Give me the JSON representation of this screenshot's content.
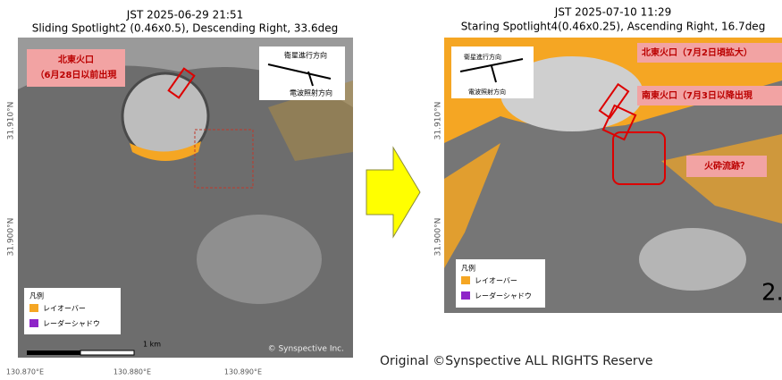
{
  "left": {
    "time": "JST 2025-06-29 21:51",
    "caption": "Sliding Spotlight2 (0.46x0.5), Descending Right, 33.6deg",
    "crater_label": [
      "北東火口",
      "（6月28日以前出現"
    ],
    "direction": {
      "satellite": "衛星進行方向",
      "radar": "電波照射方向"
    },
    "lat_ticks": [
      "31.910°N",
      "31.900°N"
    ],
    "lon_ticks": [
      "130.870°E",
      "130.880°E",
      "130.890°E"
    ],
    "legend": {
      "title": "凡例",
      "items": [
        "レイオーバー",
        "レーダーシャドウ"
      ]
    },
    "scale": "1 km",
    "copyright": "© Synspective Inc."
  },
  "right": {
    "time": "JST 2025-07-10 11:29",
    "caption": "Staring Spotlight4(0.46x0.25), Ascending Right, 16.7deg",
    "annotations": [
      "北東火口（7月2日頃拡大）",
      "南東火口（7月3日以降出現",
      "火砕流跡？"
    ],
    "direction": {
      "satellite": "衛星進行方向",
      "radar": "電波照射方向"
    },
    "lat_ticks": [
      "31.910°N",
      "31.900°N"
    ],
    "legend": {
      "title": "凡例",
      "items": [
        "レイオーバー",
        "レーダーシャドウ"
      ]
    },
    "page": "2."
  },
  "footer": "Original ©Synspective ALL RIGHTS Reserve"
}
